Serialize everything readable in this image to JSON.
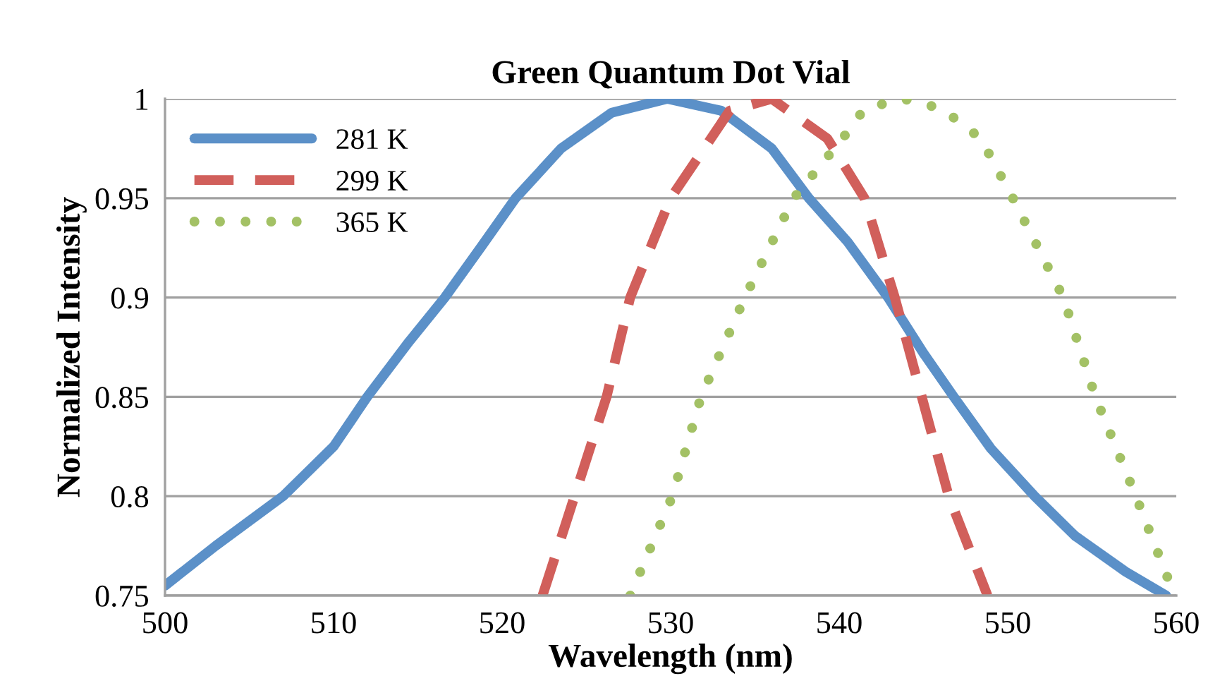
{
  "chart_data": {
    "type": "line",
    "title": "Green Quantum Dot Vial",
    "xlabel": "Wavelength (nm)",
    "ylabel": "Normalized Intensity",
    "xlim": [
      500,
      560
    ],
    "xticks": [
      500,
      510,
      520,
      530,
      540,
      550,
      560
    ],
    "ylim": [
      0.75,
      1
    ],
    "yticks": [
      0.75,
      0.8,
      0.85,
      0.9,
      0.95,
      1
    ],
    "grid": "y",
    "legend": "top left",
    "series": [
      {
        "name": "281 K",
        "color": "#5b90c8",
        "line_style": "solid",
        "x": [
          500,
          503,
          507,
          510,
          512,
          514.5,
          516.6,
          518.8,
          520.8,
          523.5,
          526.5,
          529.8,
          533,
          536,
          538.2,
          540.5,
          542.9,
          545,
          546.8,
          549,
          551.6,
          554,
          557,
          559.4
        ],
        "values": [
          0.755,
          0.775,
          0.8,
          0.825,
          0.85,
          0.878,
          0.9,
          0.926,
          0.95,
          0.975,
          0.993,
          1.0,
          0.994,
          0.975,
          0.95,
          0.928,
          0.9,
          0.872,
          0.85,
          0.824,
          0.8,
          0.78,
          0.762,
          0.75
        ]
      },
      {
        "name": "299 K",
        "color": "#d15f5b",
        "line_style": "dashed",
        "x": [
          522.4,
          524.3,
          526.2,
          527.6,
          530,
          533.5,
          536,
          539.3,
          541.5,
          543.3,
          544.9,
          546.5,
          548.8
        ],
        "values": [
          0.75,
          0.8,
          0.85,
          0.9,
          0.95,
          0.994,
          1.0,
          0.98,
          0.95,
          0.9,
          0.85,
          0.8,
          0.75
        ]
      },
      {
        "name": "365 K",
        "color": "#a3c165",
        "line_style": "dotted",
        "x": [
          527.6,
          530.1,
          531.8,
          534.4,
          537.3,
          540.2,
          541.5,
          543.8,
          546.1,
          548.4,
          550.3,
          553.3,
          555.2,
          557.6,
          559.9
        ],
        "values": [
          0.75,
          0.8,
          0.85,
          0.9,
          0.95,
          0.98,
          0.995,
          1.0,
          0.995,
          0.98,
          0.95,
          0.9,
          0.85,
          0.8,
          0.75
        ]
      }
    ]
  }
}
